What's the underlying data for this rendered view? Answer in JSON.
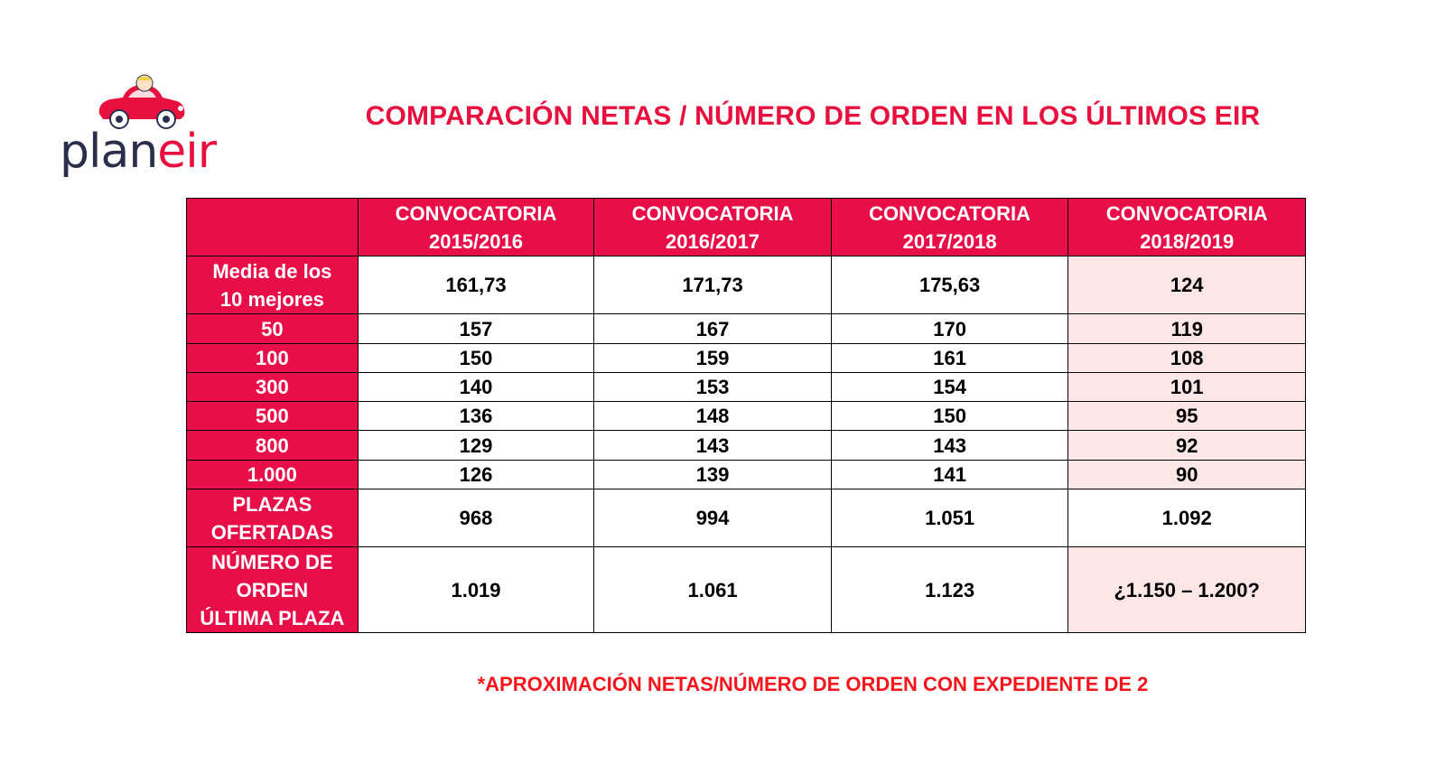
{
  "logo": {
    "text_plan": "plan",
    "text_eir": "eir",
    "brand_color": "#e8103e",
    "dark_color": "#2b2f4c"
  },
  "title": "COMPARACIÓN NETAS / NÚMERO DE ORDEN EN LOS ÚLTIMOS EIR",
  "table": {
    "columns": [
      "",
      "CONVOCATORIA\n2015/2016",
      "CONVOCATORIA\n2016/2017",
      "CONVOCATORIA\n2017/2018",
      "CONVOCATORIA\n2018/2019"
    ],
    "rows": [
      {
        "label": "Media de los\n10 mejores",
        "cells": [
          "161,73",
          "171,73",
          "175,63",
          "124"
        ],
        "highlight_last": true
      },
      {
        "label": "50",
        "cells": [
          "157",
          "167",
          "170",
          "119"
        ],
        "highlight_last": true
      },
      {
        "label": "100",
        "cells": [
          "150",
          "159",
          "161",
          "108"
        ],
        "highlight_last": true
      },
      {
        "label": "300",
        "cells": [
          "140",
          "153",
          "154",
          "101"
        ],
        "highlight_last": true
      },
      {
        "label": "500",
        "cells": [
          "136",
          "148",
          "150",
          "95"
        ],
        "highlight_last": true
      },
      {
        "label": "800",
        "cells": [
          "129",
          "143",
          "143",
          "92"
        ],
        "highlight_last": true
      },
      {
        "label": "1.000",
        "cells": [
          "126",
          "139",
          "141",
          "90"
        ],
        "highlight_last": true
      },
      {
        "label": "PLAZAS\nOFERTADAS",
        "cells": [
          "968",
          "994",
          "1.051",
          "1.092"
        ],
        "highlight_last": false
      },
      {
        "label": "NÚMERO DE\nORDEN\nÚLTIMA PLAZA",
        "cells": [
          "1.019",
          "1.061",
          "1.123",
          "¿1.150 – 1.200?"
        ],
        "highlight_last": true
      }
    ],
    "header_color": "#e80f48",
    "highlight_color": "#fde6e6"
  },
  "footnote": "*APROXIMACIÓN NETAS/NÚMERO DE ORDEN CON EXPEDIENTE DE 2"
}
